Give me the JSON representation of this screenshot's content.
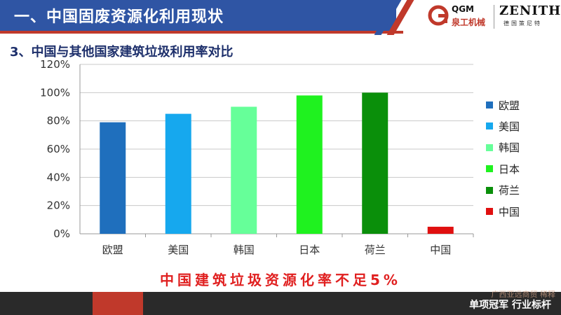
{
  "header": {
    "title": "一、中国固废资源化利用现状",
    "qgm": {
      "brand": "QGM",
      "brand_cn": "泉工机械"
    },
    "zenith": {
      "brand": "ZENITH",
      "brand_cn": "德国策尼特"
    }
  },
  "subtitle": "3、中国与其他国家建筑垃圾利用率对比",
  "chart_data": {
    "type": "bar",
    "categories": [
      "欧盟",
      "美国",
      "韩国",
      "日本",
      "荷兰",
      "中国"
    ],
    "values": [
      79,
      85,
      90,
      98,
      100,
      5
    ],
    "colors": [
      "#1f6fbd",
      "#16a8ee",
      "#66ff99",
      "#1ff21f",
      "#0a8f0a",
      "#e01010"
    ],
    "title": "",
    "xlabel": "",
    "ylabel": "",
    "ylim": [
      0,
      120
    ],
    "yticks": [
      "0%",
      "20%",
      "40%",
      "60%",
      "80%",
      "100%",
      "120%"
    ],
    "grid": true,
    "legend": "right",
    "legend_labels": [
      "欧盟",
      "美国",
      "韩国",
      "日本",
      "荷兰",
      "中国"
    ]
  },
  "callout": "中国建筑垃圾资源化率不足5%",
  "footer": {
    "slogan": "单项冠军 行业标杆"
  },
  "watermark": "广西亚远商贸 稀释"
}
